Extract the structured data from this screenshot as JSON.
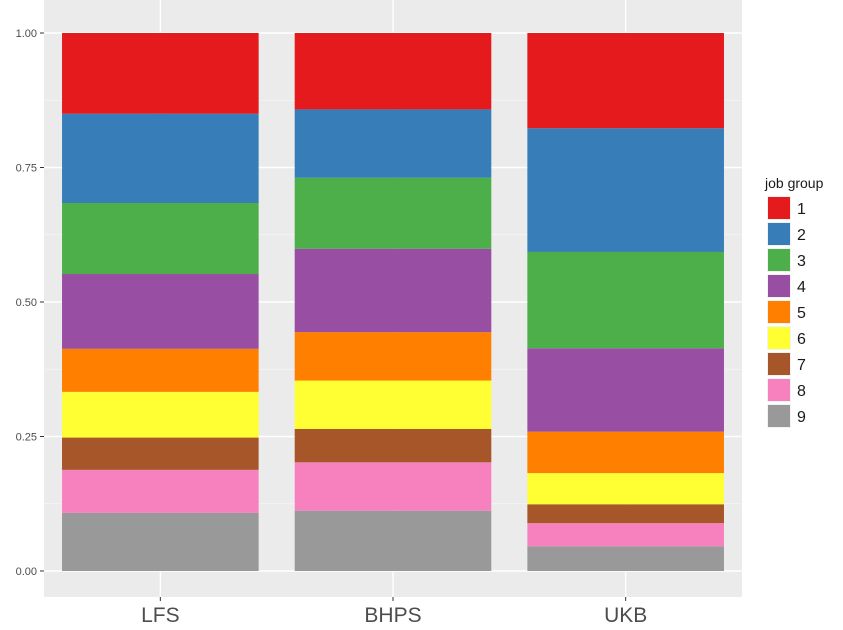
{
  "chart_data": {
    "type": "bar",
    "stacked": true,
    "categories": [
      "LFS",
      "BHPS",
      "UKB"
    ],
    "y_ticks": [
      "0.00",
      "0.25",
      "0.50",
      "0.75",
      "1.00"
    ],
    "ylim": [
      0,
      1
    ],
    "grid": true,
    "legend": {
      "title": "job group",
      "position": "right"
    },
    "series": [
      {
        "name": "1",
        "color": "#e41a1c",
        "values": [
          0.15,
          0.142,
          0.177
        ]
      },
      {
        "name": "2",
        "color": "#377eb8",
        "values": [
          0.166,
          0.127,
          0.23
        ]
      },
      {
        "name": "3",
        "color": "#4daf4a",
        "values": [
          0.132,
          0.132,
          0.179
        ]
      },
      {
        "name": "4",
        "color": "#984ea3",
        "values": [
          0.139,
          0.155,
          0.155
        ]
      },
      {
        "name": "5",
        "color": "#ff7f00",
        "values": [
          0.08,
          0.09,
          0.077
        ]
      },
      {
        "name": "6",
        "color": "#ffff33",
        "values": [
          0.085,
          0.09,
          0.058
        ]
      },
      {
        "name": "7",
        "color": "#a65628",
        "values": [
          0.06,
          0.062,
          0.035
        ]
      },
      {
        "name": "8",
        "color": "#f781bf",
        "values": [
          0.08,
          0.09,
          0.043
        ]
      },
      {
        "name": "9",
        "color": "#999999",
        "values": [
          0.108,
          0.112,
          0.046
        ]
      }
    ]
  }
}
